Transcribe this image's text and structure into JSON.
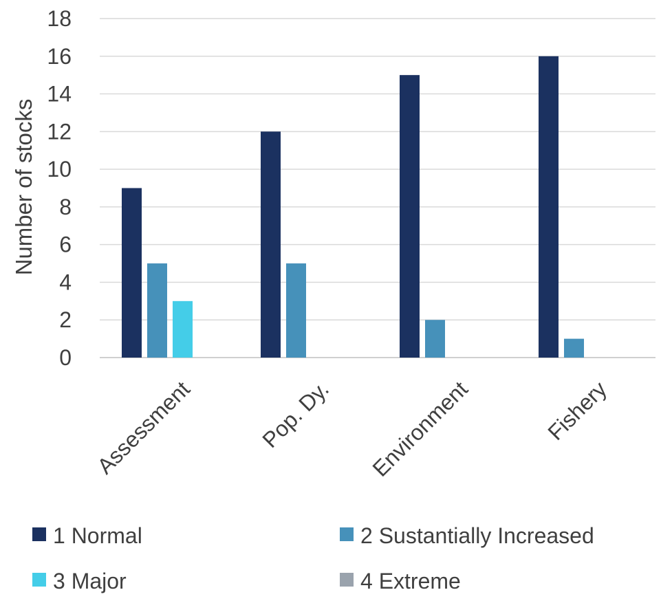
{
  "chart_data": {
    "type": "bar",
    "categories": [
      "Assessment",
      "Pop. Dy.",
      "Environment",
      "Fishery"
    ],
    "series": [
      {
        "name": "1 Normal",
        "values": [
          9,
          12,
          15,
          16
        ],
        "color": "#1b3160"
      },
      {
        "name": "2 Sustantially Increased",
        "values": [
          5,
          5,
          2,
          1
        ],
        "color": "#4691ba"
      },
      {
        "name": "3 Major",
        "values": [
          3,
          0,
          0,
          0
        ],
        "color": "#44cde8"
      },
      {
        "name": "4 Extreme",
        "values": [
          0,
          0,
          0,
          0
        ],
        "color": "#9aa3ad"
      }
    ],
    "ylabel": "Number of stocks",
    "ylim": [
      0,
      18
    ],
    "yticks": [
      0,
      2,
      4,
      6,
      8,
      10,
      12,
      14,
      16,
      18
    ],
    "grid": true,
    "legend_position": "bottom"
  }
}
